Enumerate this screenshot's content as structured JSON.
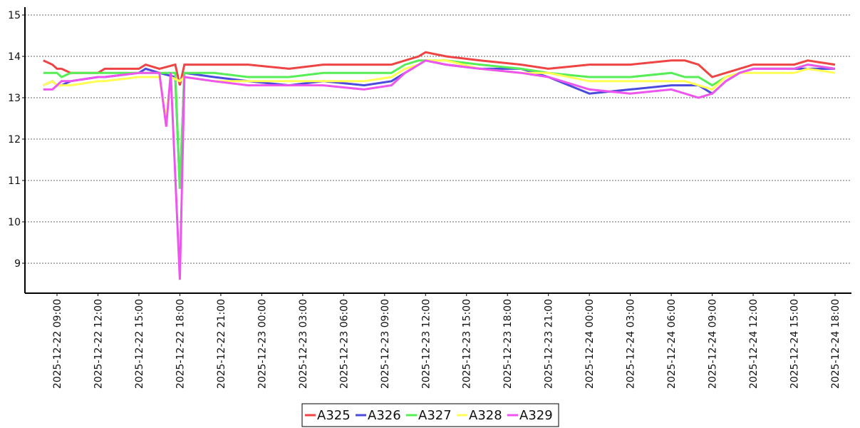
{
  "chart_data": {
    "type": "line",
    "title": "",
    "xlabel": "",
    "ylabel": "",
    "ylim": [
      8.4,
      15.2
    ],
    "yticks": [
      "9",
      "10",
      "11",
      "12",
      "13",
      "14",
      "15"
    ],
    "xlim": [
      "2025-12-22 07:30",
      "2025-12-24 18:30"
    ],
    "xticks": [
      "2025-12-22  09:00",
      "2025-12-22  12:00",
      "2025-12-22  15:00",
      "2025-12-22  18:00",
      "2025-12-22  21:00",
      "2025-12-23  00:00",
      "2025-12-23  03:00",
      "2025-12-23  06:00",
      "2025-12-23  09:00",
      "2025-12-23  12:00",
      "2025-12-23  15:00",
      "2025-12-23  18:00",
      "2025-12-23  21:00",
      "2025-12-24  00:00",
      "2025-12-24  03:00",
      "2025-12-24  06:00",
      "2025-12-24  09:00",
      "2025-12-24  12:00",
      "2025-12-24  15:00",
      "2025-12-24  18:00"
    ],
    "grid": "horizontal dashed",
    "legend": "bottom-center",
    "series": [
      {
        "name": "A325",
        "color": "#ee4444",
        "points": [
          [
            "2025-12-22 08:00",
            13.9
          ],
          [
            "2025-12-22 08:40",
            13.8
          ],
          [
            "2025-12-22 09:00",
            13.7
          ],
          [
            "2025-12-22 09:20",
            13.7
          ],
          [
            "2025-12-22 10:00",
            13.6
          ],
          [
            "2025-12-22 12:00",
            13.6
          ],
          [
            "2025-12-22 12:30",
            13.7
          ],
          [
            "2025-12-22 15:00",
            13.7
          ],
          [
            "2025-12-22 15:30",
            13.8
          ],
          [
            "2025-12-22 16:30",
            13.7
          ],
          [
            "2025-12-22 17:40",
            13.8
          ],
          [
            "2025-12-22 18:00",
            13.3
          ],
          [
            "2025-12-22 18:20",
            13.8
          ],
          [
            "2025-12-22 20:30",
            13.8
          ],
          [
            "2025-12-22 23:00",
            13.8
          ],
          [
            "2025-12-23 02:00",
            13.7
          ],
          [
            "2025-12-23 04:30",
            13.8
          ],
          [
            "2025-12-23 07:30",
            13.8
          ],
          [
            "2025-12-23 09:30",
            13.8
          ],
          [
            "2025-12-23 10:30",
            13.9
          ],
          [
            "2025-12-23 11:30",
            14.0
          ],
          [
            "2025-12-23 12:00",
            14.1
          ],
          [
            "2025-12-23 13:30",
            14.0
          ],
          [
            "2025-12-23 16:00",
            13.9
          ],
          [
            "2025-12-23 19:00",
            13.8
          ],
          [
            "2025-12-23 21:00",
            13.7
          ],
          [
            "2025-12-24 00:00",
            13.8
          ],
          [
            "2025-12-24 03:00",
            13.8
          ],
          [
            "2025-12-24 06:00",
            13.9
          ],
          [
            "2025-12-24 07:00",
            13.9
          ],
          [
            "2025-12-24 08:00",
            13.8
          ],
          [
            "2025-12-24 09:00",
            13.5
          ],
          [
            "2025-12-24 10:00",
            13.6
          ],
          [
            "2025-12-24 11:00",
            13.7
          ],
          [
            "2025-12-24 12:00",
            13.8
          ],
          [
            "2025-12-24 15:00",
            13.8
          ],
          [
            "2025-12-24 16:00",
            13.9
          ],
          [
            "2025-12-24 18:00",
            13.8
          ]
        ]
      },
      {
        "name": "A326",
        "color": "#4b4bdd",
        "points": [
          [
            "2025-12-22 08:00",
            13.3
          ],
          [
            "2025-12-22 08:40",
            13.4
          ],
          [
            "2025-12-22 09:00",
            13.3
          ],
          [
            "2025-12-22 09:20",
            13.3
          ],
          [
            "2025-12-22 10:00",
            13.4
          ],
          [
            "2025-12-22 12:00",
            13.5
          ],
          [
            "2025-12-22 12:30",
            13.5
          ],
          [
            "2025-12-22 15:00",
            13.6
          ],
          [
            "2025-12-22 15:30",
            13.7
          ],
          [
            "2025-12-22 16:30",
            13.6
          ],
          [
            "2025-12-22 17:40",
            13.5
          ],
          [
            "2025-12-22 18:00",
            10.8
          ],
          [
            "2025-12-22 18:20",
            13.6
          ],
          [
            "2025-12-22 20:30",
            13.5
          ],
          [
            "2025-12-22 23:00",
            13.4
          ],
          [
            "2025-12-23 02:00",
            13.3
          ],
          [
            "2025-12-23 04:30",
            13.4
          ],
          [
            "2025-12-23 07:30",
            13.3
          ],
          [
            "2025-12-23 09:30",
            13.4
          ],
          [
            "2025-12-23 10:30",
            13.6
          ],
          [
            "2025-12-23 11:30",
            13.8
          ],
          [
            "2025-12-23 12:00",
            13.9
          ],
          [
            "2025-12-23 13:30",
            13.8
          ],
          [
            "2025-12-23 16:00",
            13.7
          ],
          [
            "2025-12-23 19:00",
            13.7
          ],
          [
            "2025-12-23 21:00",
            13.5
          ],
          [
            "2025-12-24 00:00",
            13.1
          ],
          [
            "2025-12-24 03:00",
            13.2
          ],
          [
            "2025-12-24 06:00",
            13.3
          ],
          [
            "2025-12-24 07:00",
            13.3
          ],
          [
            "2025-12-24 08:00",
            13.3
          ],
          [
            "2025-12-24 09:00",
            13.1
          ],
          [
            "2025-12-24 10:00",
            13.4
          ],
          [
            "2025-12-24 11:00",
            13.6
          ],
          [
            "2025-12-24 12:00",
            13.7
          ],
          [
            "2025-12-24 15:00",
            13.7
          ],
          [
            "2025-12-24 16:00",
            13.7
          ],
          [
            "2025-12-24 18:00",
            13.7
          ]
        ]
      },
      {
        "name": "A327",
        "color": "#55ee55",
        "points": [
          [
            "2025-12-22 08:00",
            13.6
          ],
          [
            "2025-12-22 08:40",
            13.6
          ],
          [
            "2025-12-22 09:00",
            13.6
          ],
          [
            "2025-12-22 09:20",
            13.5
          ],
          [
            "2025-12-22 10:00",
            13.6
          ],
          [
            "2025-12-22 12:00",
            13.6
          ],
          [
            "2025-12-22 12:30",
            13.6
          ],
          [
            "2025-12-22 15:00",
            13.6
          ],
          [
            "2025-12-22 15:30",
            13.6
          ],
          [
            "2025-12-22 16:30",
            13.6
          ],
          [
            "2025-12-22 17:40",
            13.6
          ],
          [
            "2025-12-22 18:00",
            10.8
          ],
          [
            "2025-12-22 18:20",
            13.6
          ],
          [
            "2025-12-22 20:30",
            13.6
          ],
          [
            "2025-12-22 23:00",
            13.5
          ],
          [
            "2025-12-23 02:00",
            13.5
          ],
          [
            "2025-12-23 04:30",
            13.6
          ],
          [
            "2025-12-23 07:30",
            13.6
          ],
          [
            "2025-12-23 09:30",
            13.6
          ],
          [
            "2025-12-23 10:30",
            13.8
          ],
          [
            "2025-12-23 11:30",
            13.9
          ],
          [
            "2025-12-23 12:00",
            13.9
          ],
          [
            "2025-12-23 13:30",
            13.9
          ],
          [
            "2025-12-23 16:00",
            13.8
          ],
          [
            "2025-12-23 19:00",
            13.7
          ],
          [
            "2025-12-23 21:00",
            13.6
          ],
          [
            "2025-12-24 00:00",
            13.5
          ],
          [
            "2025-12-24 03:00",
            13.5
          ],
          [
            "2025-12-24 06:00",
            13.6
          ],
          [
            "2025-12-24 07:00",
            13.5
          ],
          [
            "2025-12-24 08:00",
            13.5
          ],
          [
            "2025-12-24 09:00",
            13.3
          ],
          [
            "2025-12-24 10:00",
            13.5
          ],
          [
            "2025-12-24 11:00",
            13.6
          ],
          [
            "2025-12-24 12:00",
            13.7
          ],
          [
            "2025-12-24 15:00",
            13.7
          ],
          [
            "2025-12-24 16:00",
            13.8
          ],
          [
            "2025-12-24 18:00",
            13.7
          ]
        ]
      },
      {
        "name": "A328",
        "color": "#ffff55",
        "points": [
          [
            "2025-12-22 08:00",
            13.3
          ],
          [
            "2025-12-22 08:40",
            13.4
          ],
          [
            "2025-12-22 09:00",
            13.3
          ],
          [
            "2025-12-22 09:20",
            13.3
          ],
          [
            "2025-12-22 10:00",
            13.3
          ],
          [
            "2025-12-22 12:00",
            13.4
          ],
          [
            "2025-12-22 12:30",
            13.4
          ],
          [
            "2025-12-22 15:00",
            13.5
          ],
          [
            "2025-12-22 15:30",
            13.5
          ],
          [
            "2025-12-22 16:30",
            13.5
          ],
          [
            "2025-12-22 17:00",
            12.5
          ],
          [
            "2025-12-22 17:20",
            13.5
          ],
          [
            "2025-12-22 18:00",
            13.4
          ],
          [
            "2025-12-22 18:20",
            13.5
          ],
          [
            "2025-12-22 20:30",
            13.4
          ],
          [
            "2025-12-22 23:00",
            13.4
          ],
          [
            "2025-12-23 02:00",
            13.4
          ],
          [
            "2025-12-23 04:30",
            13.4
          ],
          [
            "2025-12-23 07:30",
            13.4
          ],
          [
            "2025-12-23 09:30",
            13.5
          ],
          [
            "2025-12-23 10:30",
            13.7
          ],
          [
            "2025-12-23 11:30",
            13.8
          ],
          [
            "2025-12-23 12:00",
            13.9
          ],
          [
            "2025-12-23 13:30",
            13.9
          ],
          [
            "2025-12-23 16:00",
            13.7
          ],
          [
            "2025-12-23 19:00",
            13.6
          ],
          [
            "2025-12-23 21:00",
            13.6
          ],
          [
            "2025-12-24 00:00",
            13.4
          ],
          [
            "2025-12-24 03:00",
            13.4
          ],
          [
            "2025-12-24 06:00",
            13.4
          ],
          [
            "2025-12-24 07:00",
            13.4
          ],
          [
            "2025-12-24 08:00",
            13.3
          ],
          [
            "2025-12-24 09:00",
            13.2
          ],
          [
            "2025-12-24 10:00",
            13.5
          ],
          [
            "2025-12-24 11:00",
            13.6
          ],
          [
            "2025-12-24 12:00",
            13.6
          ],
          [
            "2025-12-24 15:00",
            13.6
          ],
          [
            "2025-12-24 16:00",
            13.7
          ],
          [
            "2025-12-24 18:00",
            13.6
          ]
        ]
      },
      {
        "name": "A329",
        "color": "#ee55ee",
        "points": [
          [
            "2025-12-22 08:00",
            13.2
          ],
          [
            "2025-12-22 08:40",
            13.2
          ],
          [
            "2025-12-22 09:00",
            13.3
          ],
          [
            "2025-12-22 09:20",
            13.4
          ],
          [
            "2025-12-22 10:00",
            13.4
          ],
          [
            "2025-12-22 12:00",
            13.5
          ],
          [
            "2025-12-22 12:30",
            13.5
          ],
          [
            "2025-12-22 15:00",
            13.6
          ],
          [
            "2025-12-22 15:30",
            13.6
          ],
          [
            "2025-12-22 16:30",
            13.6
          ],
          [
            "2025-12-22 17:00",
            12.3
          ],
          [
            "2025-12-22 17:20",
            13.6
          ],
          [
            "2025-12-22 18:00",
            8.6
          ],
          [
            "2025-12-22 18:20",
            13.5
          ],
          [
            "2025-12-22 20:30",
            13.4
          ],
          [
            "2025-12-22 23:00",
            13.3
          ],
          [
            "2025-12-23 02:00",
            13.3
          ],
          [
            "2025-12-23 04:30",
            13.3
          ],
          [
            "2025-12-23 07:30",
            13.2
          ],
          [
            "2025-12-23 09:30",
            13.3
          ],
          [
            "2025-12-23 10:30",
            13.6
          ],
          [
            "2025-12-23 11:30",
            13.8
          ],
          [
            "2025-12-23 12:00",
            13.9
          ],
          [
            "2025-12-23 13:30",
            13.8
          ],
          [
            "2025-12-23 16:00",
            13.7
          ],
          [
            "2025-12-23 19:00",
            13.6
          ],
          [
            "2025-12-23 21:00",
            13.5
          ],
          [
            "2025-12-24 00:00",
            13.2
          ],
          [
            "2025-12-24 03:00",
            13.1
          ],
          [
            "2025-12-24 06:00",
            13.2
          ],
          [
            "2025-12-24 07:00",
            13.1
          ],
          [
            "2025-12-24 08:00",
            13.0
          ],
          [
            "2025-12-24 09:00",
            13.1
          ],
          [
            "2025-12-24 10:00",
            13.4
          ],
          [
            "2025-12-24 11:00",
            13.6
          ],
          [
            "2025-12-24 12:00",
            13.7
          ],
          [
            "2025-12-24 15:00",
            13.7
          ],
          [
            "2025-12-24 16:00",
            13.8
          ],
          [
            "2025-12-24 18:00",
            13.7
          ]
        ]
      }
    ]
  }
}
